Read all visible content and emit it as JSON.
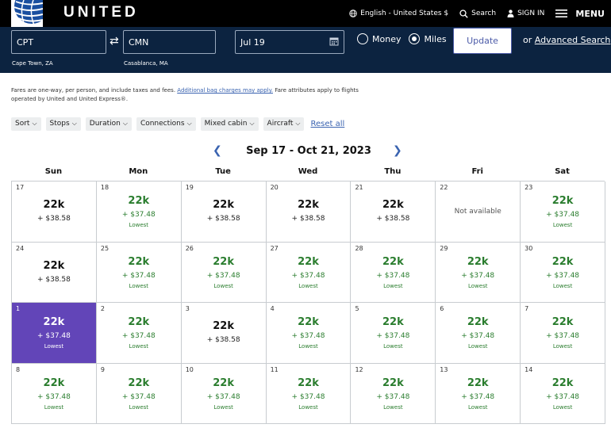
{
  "header": {
    "brand": "UNITED",
    "language": "English - United States $",
    "search_label": "Search",
    "signin_label": "SIGN IN",
    "menu_label": "MENU"
  },
  "search": {
    "from_code": "CPT",
    "from_city": "Cape Town, ZA",
    "to_code": "CMN",
    "to_city": "Casablanca, MA",
    "date": "Jul 19",
    "money_label": "Money",
    "miles_label": "Miles",
    "selected_mode": "Miles",
    "update_label": "Update",
    "advanced_prefix": "or",
    "advanced_label": "Advanced Search"
  },
  "disclaimer": {
    "text_before": "Fares are one-way, per person, and include taxes and fees.",
    "link": "Additional bag charges may apply.",
    "text_after": "Fare attributes apply to flights operated by United and United Express®."
  },
  "filters": {
    "chips": [
      "Sort",
      "Stops",
      "Duration",
      "Connections",
      "Mixed cabin",
      "Aircraft"
    ],
    "reset_label": "Reset all"
  },
  "calendar": {
    "range_title": "Sep 17 - Oct 21, 2023",
    "weekdays": [
      "Sun",
      "Mon",
      "Tue",
      "Wed",
      "Thu",
      "Fri",
      "Sat"
    ],
    "cells": [
      {
        "day": "17",
        "miles": "22k",
        "tax": "+ $38.58",
        "lowest": ""
      },
      {
        "day": "18",
        "miles": "22k",
        "tax": "+ $37.48",
        "lowest": "Lowest"
      },
      {
        "day": "19",
        "miles": "22k",
        "tax": "+ $38.58",
        "lowest": ""
      },
      {
        "day": "20",
        "miles": "22k",
        "tax": "+ $38.58",
        "lowest": ""
      },
      {
        "day": "21",
        "miles": "22k",
        "tax": "+ $38.58",
        "lowest": ""
      },
      {
        "day": "22",
        "not_available": "Not available"
      },
      {
        "day": "23",
        "miles": "22k",
        "tax": "+ $37.48",
        "lowest": "Lowest"
      },
      {
        "day": "24",
        "miles": "22k",
        "tax": "+ $38.58",
        "lowest": ""
      },
      {
        "day": "25",
        "miles": "22k",
        "tax": "+ $37.48",
        "lowest": "Lowest"
      },
      {
        "day": "26",
        "miles": "22k",
        "tax": "+ $37.48",
        "lowest": "Lowest"
      },
      {
        "day": "27",
        "miles": "22k",
        "tax": "+ $37.48",
        "lowest": "Lowest"
      },
      {
        "day": "28",
        "miles": "22k",
        "tax": "+ $37.48",
        "lowest": "Lowest"
      },
      {
        "day": "29",
        "miles": "22k",
        "tax": "+ $37.48",
        "lowest": "Lowest"
      },
      {
        "day": "30",
        "miles": "22k",
        "tax": "+ $37.48",
        "lowest": "Lowest"
      },
      {
        "day": "1",
        "miles": "22k",
        "tax": "+ $37.48",
        "lowest": "Lowest",
        "selected": true
      },
      {
        "day": "2",
        "miles": "22k",
        "tax": "+ $37.48",
        "lowest": "Lowest"
      },
      {
        "day": "3",
        "miles": "22k",
        "tax": "+ $38.58",
        "lowest": ""
      },
      {
        "day": "4",
        "miles": "22k",
        "tax": "+ $37.48",
        "lowest": "Lowest"
      },
      {
        "day": "5",
        "miles": "22k",
        "tax": "+ $37.48",
        "lowest": "Lowest"
      },
      {
        "day": "6",
        "miles": "22k",
        "tax": "+ $37.48",
        "lowest": "Lowest"
      },
      {
        "day": "7",
        "miles": "22k",
        "tax": "+ $37.48",
        "lowest": "Lowest"
      },
      {
        "day": "8",
        "miles": "22k",
        "tax": "+ $37.48",
        "lowest": "Lowest"
      },
      {
        "day": "9",
        "miles": "22k",
        "tax": "+ $37.48",
        "lowest": "Lowest"
      },
      {
        "day": "10",
        "miles": "22k",
        "tax": "+ $37.48",
        "lowest": "Lowest"
      },
      {
        "day": "11",
        "miles": "22k",
        "tax": "+ $37.48",
        "lowest": "Lowest"
      },
      {
        "day": "12",
        "miles": "22k",
        "tax": "+ $37.48",
        "lowest": "Lowest"
      },
      {
        "day": "13",
        "miles": "22k",
        "tax": "+ $37.48",
        "lowest": "Lowest"
      },
      {
        "day": "14",
        "miles": "22k",
        "tax": "+ $37.48",
        "lowest": "Lowest"
      }
    ]
  },
  "colors": {
    "navy": "#0c2340",
    "selected": "#6245b8",
    "lowest_green": "#2a7d2e",
    "link_blue": "#3a63b0"
  }
}
